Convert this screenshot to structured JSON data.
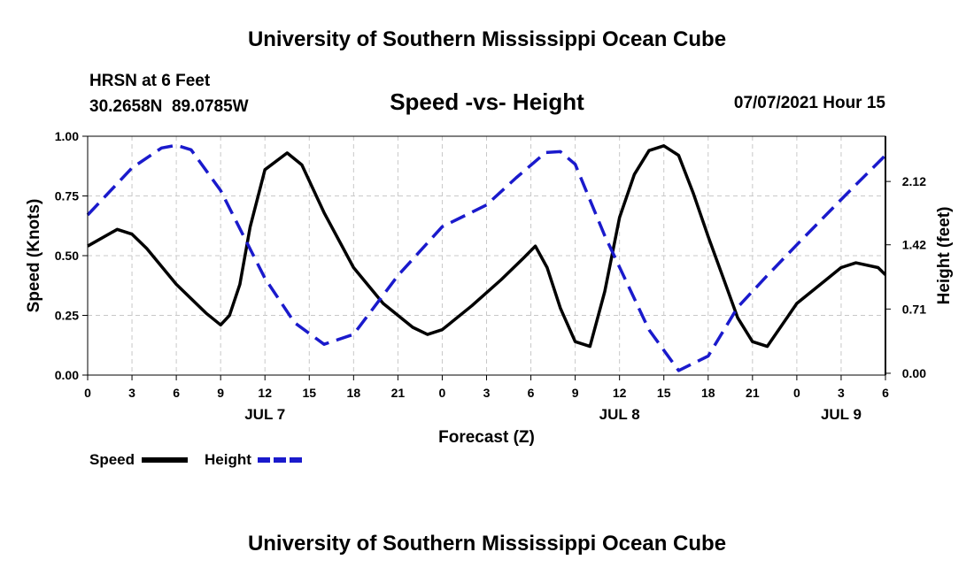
{
  "header": {
    "title_top": "University of Southern Mississippi Ocean Cube",
    "title_bottom": "University of Southern Mississippi Ocean Cube",
    "station_name": "HRSN at 6 Feet",
    "station_coords": "30.2658N  89.0785W",
    "subtitle": "Speed -vs- Height",
    "datetime": "07/07/2021 Hour 15"
  },
  "chart_data": {
    "type": "line",
    "xlabel": "Forecast (Z)",
    "ylabel_left": "Speed (Knots)",
    "ylabel_right": "Height (feet)",
    "x_unit": "hours since 2021-07-07 00Z",
    "xlim": [
      0,
      54
    ],
    "ylim_left": [
      0,
      1
    ],
    "ylim_right": [
      -0.02,
      2.62
    ],
    "x_ticks": [
      0,
      3,
      6,
      9,
      12,
      15,
      18,
      21,
      24,
      27,
      30,
      33,
      36,
      39,
      42,
      45,
      48,
      51,
      54
    ],
    "x_tick_labels": [
      "0",
      "3",
      "6",
      "9",
      "12",
      "15",
      "18",
      "21",
      "0",
      "3",
      "6",
      "9",
      "12",
      "15",
      "18",
      "21",
      "0",
      "3",
      "6"
    ],
    "y_ticks_left": [
      0,
      0.25,
      0.5,
      0.75,
      1
    ],
    "y_tick_labels_left": [
      "0.00",
      "0.25",
      "0.50",
      "0.75",
      "1.00"
    ],
    "y_ticks_right": [
      0,
      0.71,
      1.42,
      2.12
    ],
    "y_tick_labels_right": [
      "0.00",
      "0.71",
      "1.42",
      "2.12"
    ],
    "day_labels": [
      {
        "x": 12,
        "label": "JUL 7"
      },
      {
        "x": 36,
        "label": "JUL 8"
      },
      {
        "x": 51,
        "label": "JUL 9"
      }
    ],
    "grid": true,
    "legend": {
      "placement": "bottom-left",
      "entries": [
        {
          "label": "Speed",
          "color": "#000000",
          "style": "solid"
        },
        {
          "label": "Height",
          "color": "#1a1acc",
          "style": "dashed"
        }
      ]
    },
    "series": [
      {
        "name": "Speed",
        "axis": "left",
        "color": "#000000",
        "style": "solid",
        "x": [
          0,
          2,
          3,
          4,
          6,
          8,
          9,
          9.6,
          10.3,
          11,
          12,
          13.5,
          14.5,
          16,
          18,
          20,
          22,
          23,
          24,
          26,
          28,
          29.5,
          30.3,
          31.1,
          32,
          33,
          34,
          35,
          36,
          37,
          38,
          39,
          40,
          41,
          42,
          43,
          44,
          45,
          46,
          48,
          50,
          51,
          52,
          53.5,
          54
        ],
        "values": [
          0.54,
          0.61,
          0.59,
          0.53,
          0.38,
          0.26,
          0.21,
          0.25,
          0.38,
          0.62,
          0.86,
          0.93,
          0.88,
          0.68,
          0.45,
          0.3,
          0.2,
          0.17,
          0.19,
          0.29,
          0.4,
          0.49,
          0.54,
          0.45,
          0.28,
          0.14,
          0.12,
          0.35,
          0.66,
          0.84,
          0.94,
          0.96,
          0.92,
          0.76,
          0.58,
          0.41,
          0.24,
          0.14,
          0.12,
          0.3,
          0.4,
          0.45,
          0.47,
          0.45,
          0.42
        ]
      },
      {
        "name": "Height",
        "axis": "right",
        "color": "#1a1acc",
        "style": "dashed",
        "x": [
          0,
          3,
          5,
          6,
          7,
          9,
          12,
          14,
          16,
          18,
          21,
          24,
          27,
          29,
          31,
          32,
          33,
          35,
          38,
          40,
          42,
          44,
          46,
          48,
          51,
          54
        ],
        "values": [
          1.75,
          2.27,
          2.49,
          2.52,
          2.47,
          2.02,
          1.05,
          0.56,
          0.32,
          0.43,
          1.08,
          1.62,
          1.86,
          2.16,
          2.44,
          2.45,
          2.31,
          1.52,
          0.48,
          0.03,
          0.19,
          0.73,
          1.08,
          1.42,
          1.92,
          2.41
        ]
      }
    ]
  }
}
